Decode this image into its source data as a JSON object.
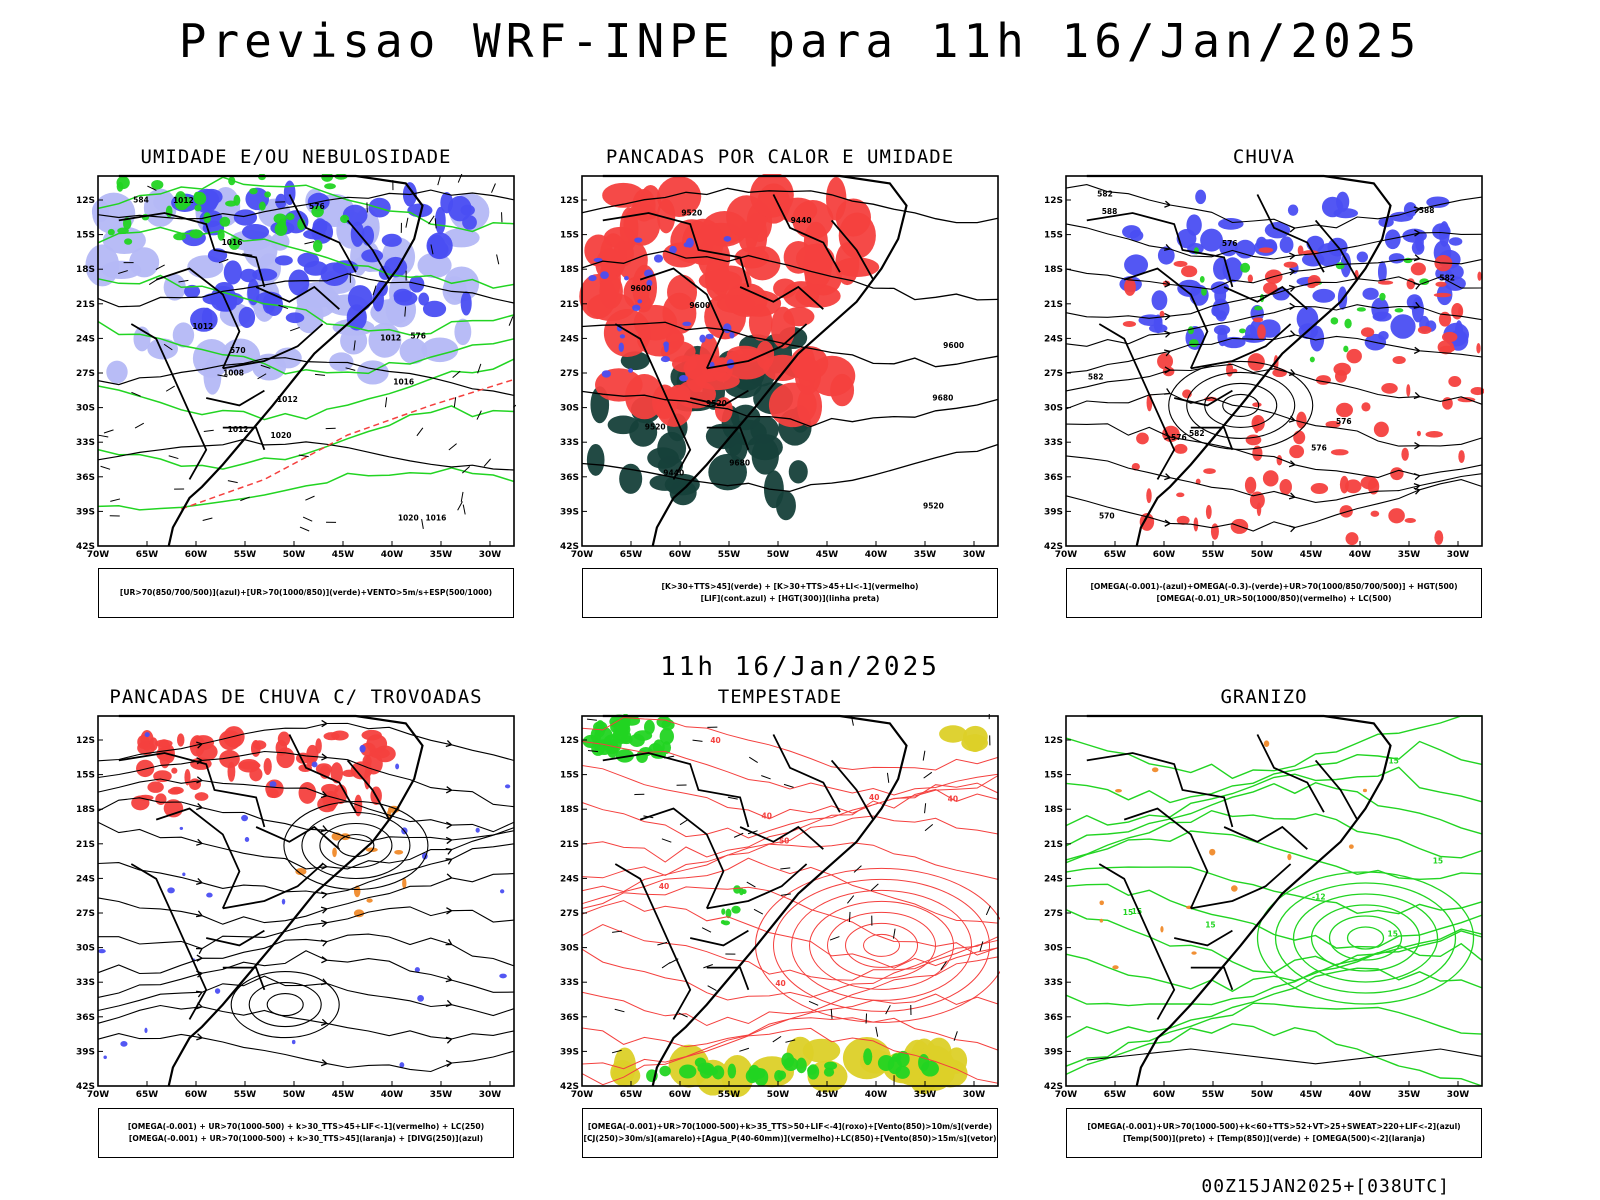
{
  "header": {
    "title": "Previsao WRF-INPE  para 11h 16/Jan/2025"
  },
  "mid_title": "11h 16/Jan/2025",
  "footer": "00Z15JAN2025+[038UTC]",
  "axes": {
    "lat_ticks": [
      "12S",
      "15S",
      "18S",
      "21S",
      "24S",
      "27S",
      "30S",
      "33S",
      "36S",
      "39S",
      "42S"
    ],
    "lon_ticks": [
      "70W",
      "65W",
      "60W",
      "55W",
      "50W",
      "45W",
      "40W",
      "35W",
      "30W"
    ]
  },
  "panels": [
    {
      "title": "UMIDADE E/OU NEBULOSIDADE",
      "legend": [
        "[UR>70(850/700/500)](azul)+[UR>70(1000/850)](verde)+VENTO>5m/s+ESP(500/1000)"
      ],
      "labels": [
        "1012",
        "1012",
        "1012",
        "1016",
        "1016",
        "1016",
        "1020",
        "1008",
        "1012",
        "1012",
        "576",
        "576",
        "584",
        "1020",
        "570"
      ]
    },
    {
      "title": "PANCADAS POR CALOR E UMIDADE",
      "legend": [
        "[K>30+TTS>45](verde) + [K>30+TTS>45+LI<-1](vermelho)",
        "[LIF](cont.azul) + [HGT(300)](linha preta)"
      ],
      "labels": [
        "9600",
        "9520",
        "9600",
        "9680",
        "9680",
        "9600",
        "9520",
        "9520",
        "9440",
        "9520",
        "9440"
      ]
    },
    {
      "title": "CHUVA",
      "legend": [
        "[OMEGA(-0.001)-(azul)+OMEGA(-0.3)-(verde)+UR>70(1000/850/700/500)] + HGT(500)",
        "[OMEGA(-0.01)_UR>50(1000/850)(vermelho) + LC(500)"
      ],
      "labels": [
        "588",
        "582",
        "582",
        "588",
        "582",
        "576",
        "576",
        "582",
        "570",
        "576",
        "576"
      ]
    },
    {
      "title": "PANCADAS DE CHUVA C/ TROVOADAS",
      "legend": [
        "[OMEGA(-0.001) + UR>70(1000-500) + k>30_TTS>45+LIF<-1](vermelho) + LC(250)",
        "[OMEGA(-0.001) + UR>70(1000-500) + k>30_TTS>45](laranja) + [DIVG(250)](azul)"
      ],
      "labels": []
    },
    {
      "title": "TEMPESTADE",
      "legend": [
        "[OMEGA(-0.001)+UR>70(1000-500)+k>35_TTS>50+LIF<-4](roxo)+[Vento(850)>10m/s](verde)",
        "[CJ(250)>30m/s](amarelo)+[Agua_P(40-60mm)](vermelho)+LC(850)+[Vento(850)>15m/s](vetor)"
      ],
      "labels": [
        "40",
        "40",
        "50",
        "40",
        "40",
        "40",
        "40"
      ]
    },
    {
      "title": "GRANIZO",
      "legend": [
        "[OMEGA(-0.001)+UR>70(1000-500)+k<60+TTS>52+VT>25+SWEAT>220+LIF<-2](azul)",
        "[Temp(500)](preto) + [Temp(850)](verde) + [OMEGA(500)<-2](laranja)"
      ],
      "labels": [
        "-12",
        "15",
        "15",
        "15",
        "15",
        "15",
        "15"
      ]
    }
  ],
  "colors": {
    "red": "#f4403e",
    "blue": "#4a4ef2",
    "lightblue": "#b4b8f6",
    "green": "#22d422",
    "darkgreen": "#16403a",
    "yellow": "#dcd028",
    "orange": "#f08a2a"
  }
}
